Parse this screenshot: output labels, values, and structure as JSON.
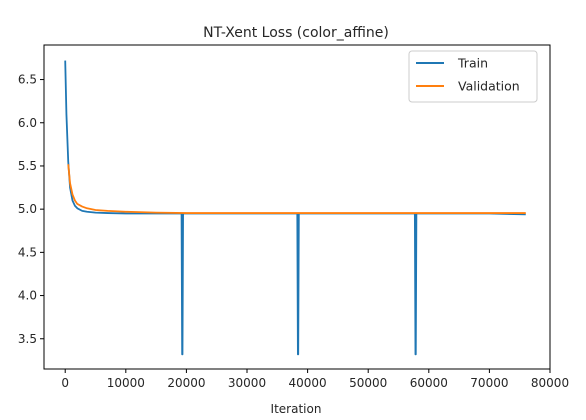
{
  "chart_data": {
    "type": "line",
    "title": "NT-Xent Loss (color_affine)",
    "xlabel": "Iteration",
    "ylabel": "",
    "xlim": [
      -3500,
      80000
    ],
    "ylim": [
      3.15,
      6.9
    ],
    "xticks": [
      0,
      10000,
      20000,
      30000,
      40000,
      50000,
      60000,
      70000,
      80000
    ],
    "yticks": [
      3.5,
      4.0,
      4.5,
      5.0,
      5.5,
      6.0,
      6.5
    ],
    "grid": false,
    "legend_position": "top-right",
    "series": [
      {
        "name": "Train",
        "color": "#1f77b4",
        "x": [
          0,
          200,
          500,
          800,
          1200,
          1600,
          2000,
          2800,
          3600,
          5000,
          7000,
          10000,
          14000,
          19200,
          19300,
          19350,
          19450,
          30000,
          38300,
          38400,
          38450,
          38550,
          50000,
          57700,
          57800,
          57850,
          57950,
          70000,
          76000
        ],
        "y": [
          6.72,
          6.1,
          5.55,
          5.25,
          5.1,
          5.04,
          5.01,
          4.98,
          4.97,
          4.96,
          4.955,
          4.95,
          4.95,
          4.95,
          3.32,
          3.32,
          4.95,
          4.95,
          4.95,
          3.32,
          3.32,
          4.95,
          4.95,
          4.95,
          3.32,
          3.32,
          4.95,
          4.95,
          4.94
        ]
      },
      {
        "name": "Validation",
        "color": "#ff7f0e",
        "x": [
          500,
          800,
          1200,
          1600,
          2000,
          2800,
          3600,
          5000,
          7000,
          10000,
          15000,
          20000,
          30000,
          40000,
          50000,
          60000,
          70000,
          76000
        ],
        "y": [
          5.52,
          5.3,
          5.17,
          5.1,
          5.06,
          5.03,
          5.01,
          4.99,
          4.98,
          4.97,
          4.96,
          4.955,
          4.955,
          4.955,
          4.955,
          4.955,
          4.955,
          4.955
        ]
      }
    ]
  }
}
